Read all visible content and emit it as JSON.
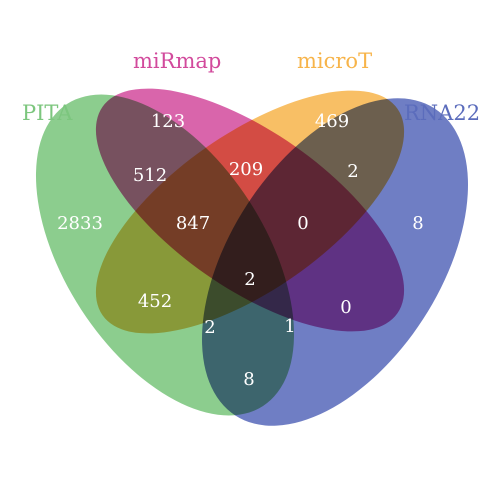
{
  "sets": {
    "pita": {
      "label": "PITA",
      "color": "#7cc67e"
    },
    "mirmap": {
      "label": "miRmap",
      "color": "#d24a9c"
    },
    "microt": {
      "label": "microT",
      "color": "#f7b44a"
    },
    "rna22": {
      "label": "RNA22",
      "color": "#5b6cbc"
    }
  },
  "regions": {
    "mirmap_only": "123",
    "microt_only": "469",
    "pita_only": "2833",
    "rna22_only": "8",
    "pita_mirmap": "512",
    "mirmap_microt": "209",
    "microt_rna22": "2",
    "pita_mirmap_microt": "847",
    "mirmap_microt_rna22": "0",
    "all_four": "2",
    "pita_microt": "452",
    "mirmap_rna22": "0",
    "pita_microt_rna22": "2",
    "pita_mirmap_rna22": "1",
    "pita_rna22": "8"
  }
}
